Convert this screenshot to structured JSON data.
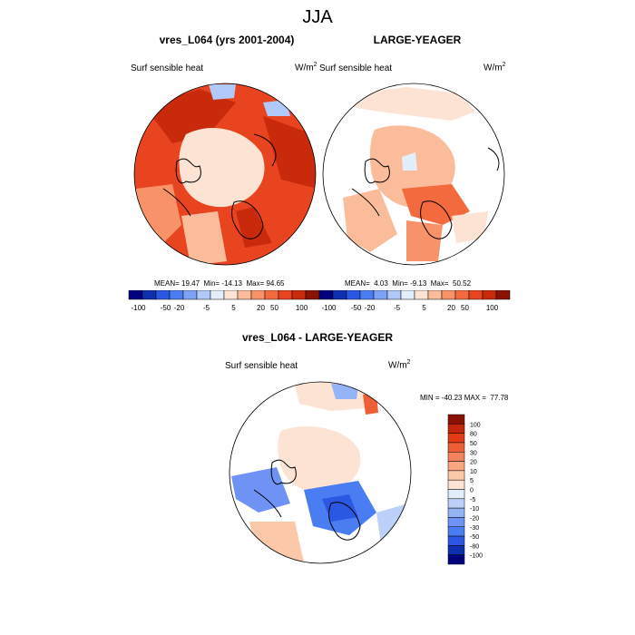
{
  "main_title": "JJA",
  "chart_data": [
    {
      "type": "heatmap",
      "projection": "north-polar-stereographic",
      "title": "vres_L064 (yrs 2001-2004)",
      "left_string": "Surf sensible heat",
      "right_string": "W/m",
      "units_exp": "2",
      "stats": {
        "mean_label": "MEAN=",
        "mean": "19.47",
        "min_label": "Min=",
        "min": "-14.13",
        "max_label": "Max=",
        "max": "94.65"
      },
      "colorbar_ticks": [
        "-100",
        "-50",
        "-20",
        "-5",
        "5",
        "20",
        "50",
        "100"
      ]
    },
    {
      "type": "heatmap",
      "projection": "north-polar-stereographic",
      "title": "LARGE-YEAGER",
      "left_string": "Surf sensible heat",
      "right_string": "W/m",
      "units_exp": "2",
      "stats": {
        "mean_label": "MEAN=",
        "mean": "4.03",
        "min_label": "Min=",
        "min": "-9.13",
        "max_label": "Max=",
        "max": "50.52"
      },
      "colorbar_ticks": [
        "-100",
        "-50",
        "-20",
        "-5",
        "5",
        "20",
        "50",
        "100"
      ]
    },
    {
      "type": "heatmap",
      "projection": "north-polar-stereographic",
      "title": "vres_L064 - LARGE-YEAGER",
      "left_string": "Surf sensible heat",
      "right_string": "W/m",
      "units_exp": "2",
      "stats_text": "MIN = -40.23 MAX =  77.78",
      "colorbar_ticks": [
        "100",
        "80",
        "50",
        "30",
        "20",
        "10",
        "5",
        "0",
        "-5",
        "-10",
        "-20",
        "-30",
        "-50",
        "-80",
        "-100"
      ]
    }
  ],
  "colors": {
    "scale14": [
      "#00007f",
      "#0d2fb0",
      "#2a58e3",
      "#4a7cf2",
      "#7ea2f6",
      "#b0c9f8",
      "#e3eefb",
      "#fde3d3",
      "#fbbc9c",
      "#f89269",
      "#f26a3d",
      "#e84420",
      "#c92a0c",
      "#8a1204"
    ],
    "scale16": [
      "#00007f",
      "#0d2fb0",
      "#2a58e3",
      "#4a7cf2",
      "#6f93f4",
      "#95b3f7",
      "#bcd0f9",
      "#e3eefb",
      "#fde3d3",
      "#fbc9a9",
      "#f9a781",
      "#f4835a",
      "#ef5f35",
      "#e33b16",
      "#c32609",
      "#8a1204"
    ]
  }
}
